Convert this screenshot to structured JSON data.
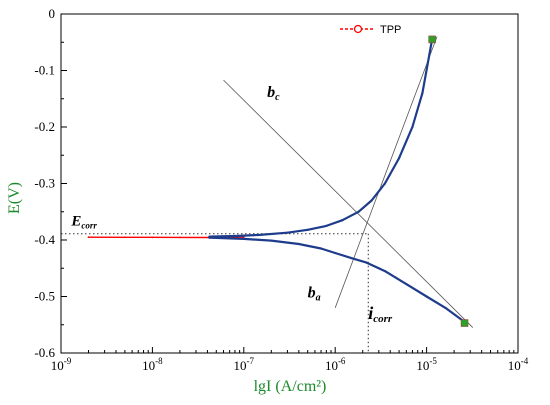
{
  "chart_data": {
    "type": "line",
    "title": "",
    "xlabel": "lgI (A/cm²)",
    "ylabel": "E(V)",
    "x_scale": "log",
    "xlim": [
      1e-09,
      0.0001
    ],
    "ylim": [
      -0.6,
      0.0
    ],
    "x_ticks": [
      {
        "base": "10",
        "exp": "-9",
        "value": 1e-09
      },
      {
        "base": "10",
        "exp": "-8",
        "value": 1e-08
      },
      {
        "base": "10",
        "exp": "-7",
        "value": 1e-07
      },
      {
        "base": "10",
        "exp": "-6",
        "value": 1e-06
      },
      {
        "base": "10",
        "exp": "-5",
        "value": 1e-05
      },
      {
        "base": "10",
        "exp": "-4",
        "value": 0.0001
      }
    ],
    "y_ticks": [
      "0",
      "-0.1",
      "-0.2",
      "-0.3",
      "-0.4",
      "-0.5",
      "-0.6"
    ],
    "y_tick_values": [
      0,
      -0.1,
      -0.2,
      -0.3,
      -0.4,
      -0.5,
      -0.6
    ],
    "grid": false,
    "legend": {
      "position": "top-right",
      "entries": [
        "TPP"
      ]
    },
    "series": [
      {
        "name": "TPP",
        "color": "#ff0000",
        "points": [
          [
            2e-09,
            -0.395
          ],
          [
            5e-09,
            -0.3952
          ],
          [
            1e-08,
            -0.3953
          ],
          [
            2e-08,
            -0.3954
          ],
          [
            4.2e-08,
            -0.3955
          ],
          [
            6e-08,
            -0.3952
          ],
          [
            8e-08,
            -0.395
          ],
          [
            1e-07,
            -0.3947
          ]
        ]
      },
      {
        "name": "",
        "color": "#1e3c8c",
        "points": [
          [
            4.2e-08,
            -0.394
          ],
          [
            8e-08,
            -0.393
          ],
          [
            1.5e-07,
            -0.391
          ],
          [
            3e-07,
            -0.387
          ],
          [
            5e-07,
            -0.382
          ],
          [
            8e-07,
            -0.375
          ],
          [
            1.2e-06,
            -0.365
          ],
          [
            1.8e-06,
            -0.35
          ],
          [
            2.5e-06,
            -0.33
          ],
          [
            3.5e-06,
            -0.3
          ],
          [
            5e-06,
            -0.255
          ],
          [
            7e-06,
            -0.2
          ],
          [
            9e-06,
            -0.14
          ],
          [
            1.15e-05,
            -0.045
          ]
        ]
      },
      {
        "name": "",
        "color": "#1e3c8c",
        "points": [
          [
            4.2e-08,
            -0.396
          ],
          [
            1e-07,
            -0.398
          ],
          [
            2e-07,
            -0.401
          ],
          [
            4e-07,
            -0.407
          ],
          [
            7e-07,
            -0.415
          ],
          [
            1e-06,
            -0.423
          ],
          [
            1.5e-06,
            -0.432
          ],
          [
            2.2e-06,
            -0.44
          ],
          [
            3.5e-06,
            -0.455
          ],
          [
            6e-06,
            -0.478
          ],
          [
            1e-05,
            -0.5
          ],
          [
            1.6e-05,
            -0.52
          ],
          [
            2.6e-05,
            -0.545
          ]
        ]
      }
    ],
    "end_markers": [
      {
        "x": 1.15e-05,
        "y": -0.045,
        "color": "#2ca02c"
      },
      {
        "x": 2.6e-05,
        "y": -0.547,
        "color": "#2ca02c"
      }
    ],
    "tafel_lines": [
      {
        "label": "b",
        "subscript": "c",
        "from": [
          6e-08,
          -0.117
        ],
        "to": [
          3.2e-05,
          -0.555
        ]
      },
      {
        "label": "b",
        "subscript": "a",
        "from": [
          1e-06,
          -0.52
        ],
        "to": [
          1.3e-05,
          -0.04
        ]
      }
    ],
    "corrosion_point": {
      "x": 2.3e-06,
      "y": -0.389
    },
    "annotations": {
      "bc": {
        "main": "b",
        "sub": "c",
        "x": 1.8e-07,
        "y": -0.147
      },
      "ba": {
        "main": "b",
        "sub": "a",
        "x": 5e-07,
        "y": -0.502
      },
      "ecorr": {
        "main": "E",
        "sub": "corr",
        "x": 1.3e-09,
        "y": -0.374
      },
      "icorr": {
        "main": "i",
        "sub": "corr",
        "x": 2.3e-06,
        "y": -0.54
      }
    }
  }
}
